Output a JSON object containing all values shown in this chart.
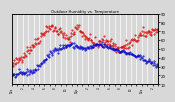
{
  "title": "Outdoor Humidity vs. Temperature",
  "bg_color": "#d8d8d8",
  "plot_bg": "#d8d8d8",
  "red_color": "#dd0000",
  "blue_color": "#0000cc",
  "grid_color": "#ffffff",
  "ylim": [
    10,
    90
  ],
  "yticks_right": [
    10,
    20,
    30,
    40,
    50,
    60,
    70,
    80,
    90
  ],
  "n_points": 200
}
